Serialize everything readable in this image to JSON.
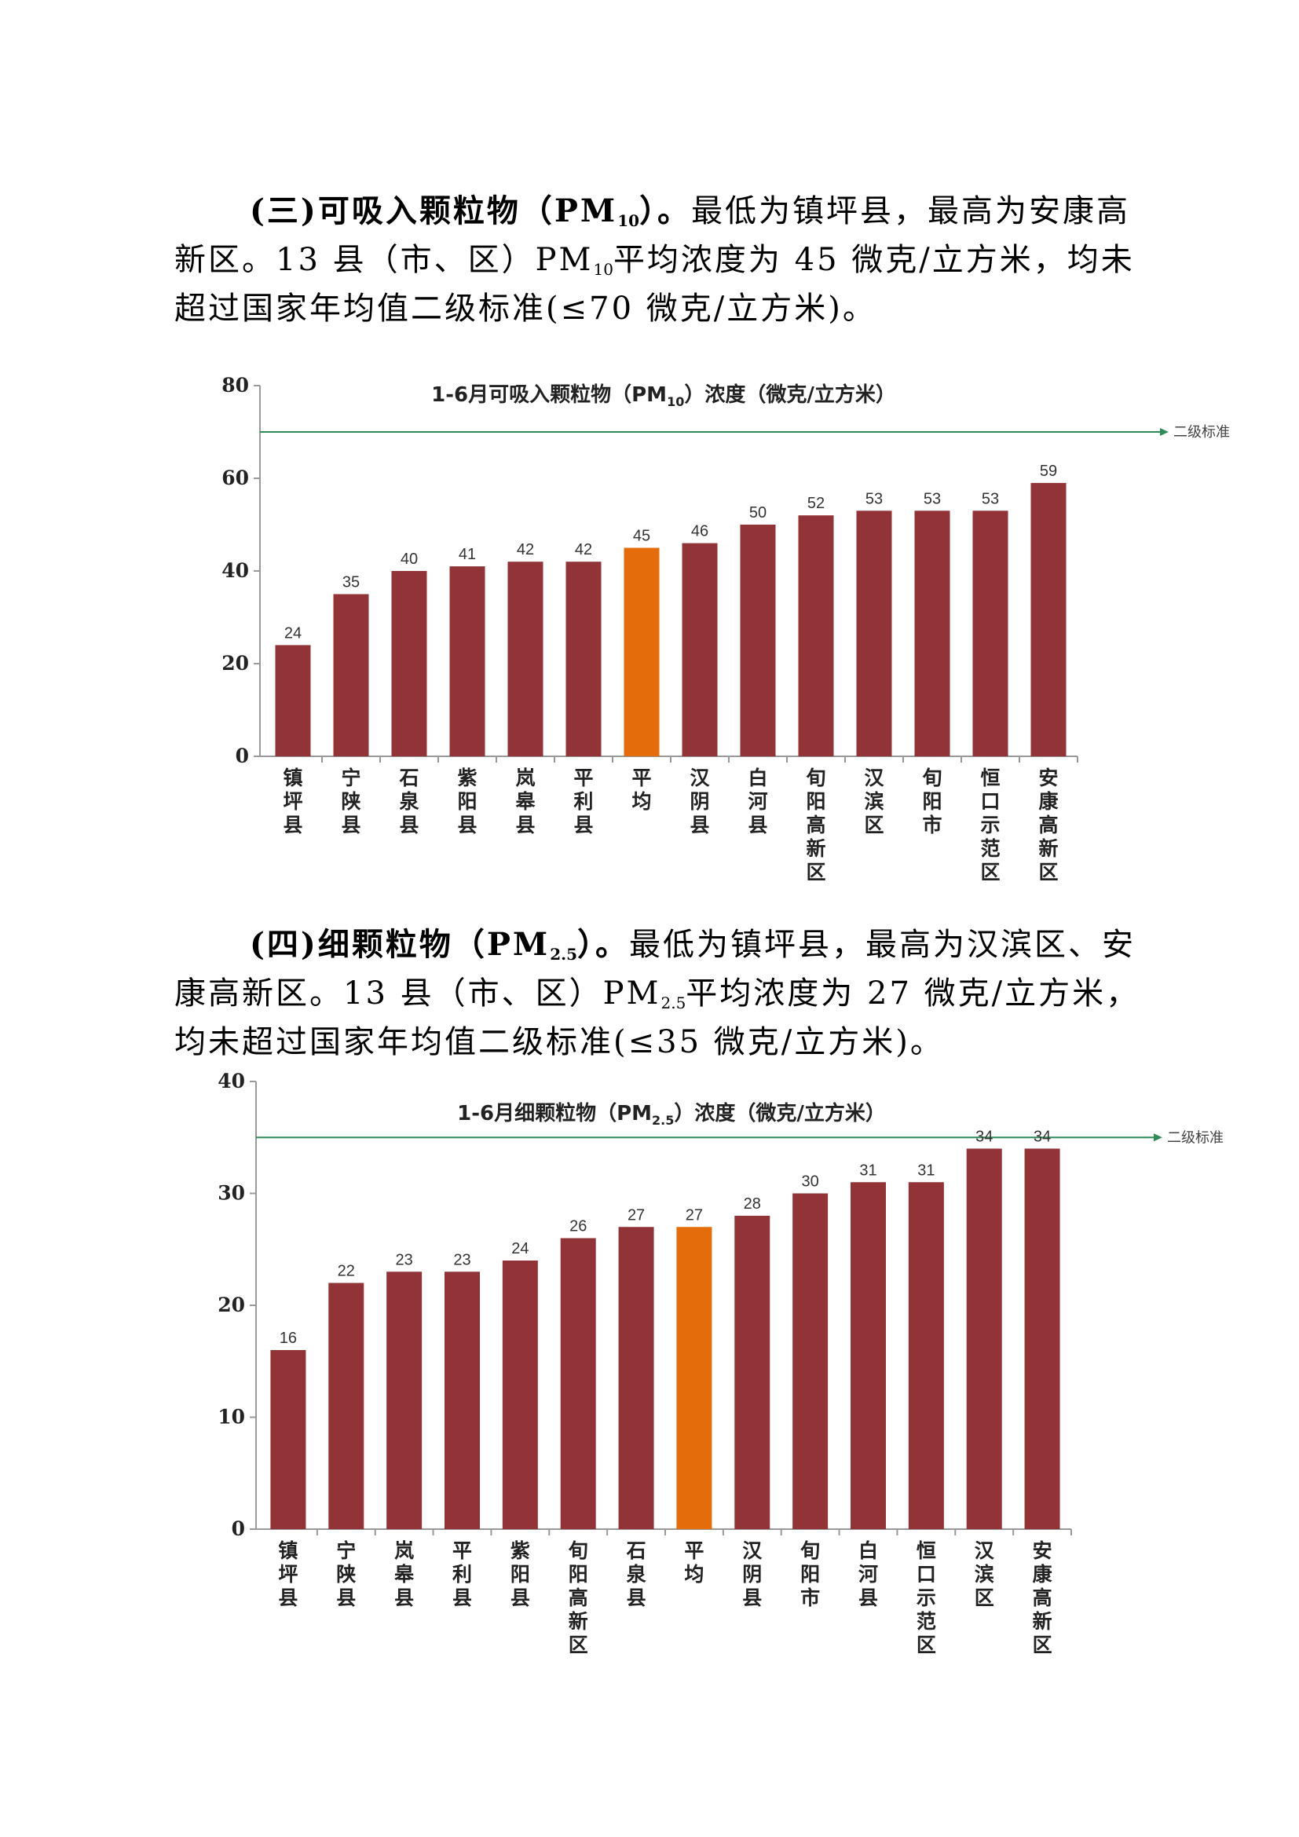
{
  "section3": {
    "heading": "(三)可吸入颗粒物（PM",
    "heading_sub": "10",
    "heading_end": "）。",
    "text_a": "最低为镇坪县，最高为安康高新区。13 县（市、区）PM",
    "text_sub": "10",
    "text_b": "平均浓度为 45 微克/立方米，均未超过国家年均值二级标准(≤70 微克/立方米)。"
  },
  "section4": {
    "heading": "(四)细颗粒物（PM",
    "heading_sub": "2.5",
    "heading_end": "）。",
    "text_a": "最低为镇坪县，最高为汉滨区、安康高新区。13 县（市、区）PM",
    "text_sub": "2.5",
    "text_b": "平均浓度为 27 微克/立方米，均未超过国家年均值二级标准(≤35 微克/立方米)。"
  },
  "colors": {
    "bar": "#923437",
    "average_bar": "#e46c0a",
    "standard_line": "#2e8b57",
    "axis": "#999999"
  },
  "chart_data": [
    {
      "type": "bar",
      "title": "1-6月可吸入颗粒物（PM",
      "title_sub": "10",
      "title_end": "）浓度（微克/立方米）",
      "categories": [
        "镇坪县",
        "宁陕县",
        "石泉县",
        "紫阳县",
        "岚皋县",
        "平利县",
        "平均",
        "汉阴县",
        "白河县",
        "旬阳高新区",
        "汉滨区",
        "旬阳市",
        "恒口示范区",
        "安康高新区"
      ],
      "values": [
        24,
        35,
        40,
        41,
        42,
        42,
        45,
        46,
        50,
        52,
        53,
        53,
        53,
        59
      ],
      "highlight_category": "平均",
      "ylim": [
        0,
        80
      ],
      "yticks": [
        0,
        20,
        40,
        60,
        80
      ],
      "reference_line": {
        "label": "二级标准",
        "value": 70
      }
    },
    {
      "type": "bar",
      "title": "1-6月细颗粒物（PM",
      "title_sub": "2.5",
      "title_end": "）浓度（微克/立方米）",
      "categories": [
        "镇坪县",
        "宁陕县",
        "岚皋县",
        "平利县",
        "紫阳县",
        "旬阳高新区",
        "石泉县",
        "平均",
        "汉阴县",
        "旬阳市",
        "白河县",
        "恒口示范区",
        "汉滨区",
        "安康高新区"
      ],
      "values": [
        16,
        22,
        23,
        23,
        24,
        26,
        27,
        27,
        28,
        30,
        31,
        31,
        34,
        34
      ],
      "highlight_category": "平均",
      "ylim": [
        0,
        40
      ],
      "yticks": [
        0,
        10,
        20,
        30,
        40
      ],
      "reference_line": {
        "label": "二级标准",
        "value": 35
      }
    }
  ]
}
